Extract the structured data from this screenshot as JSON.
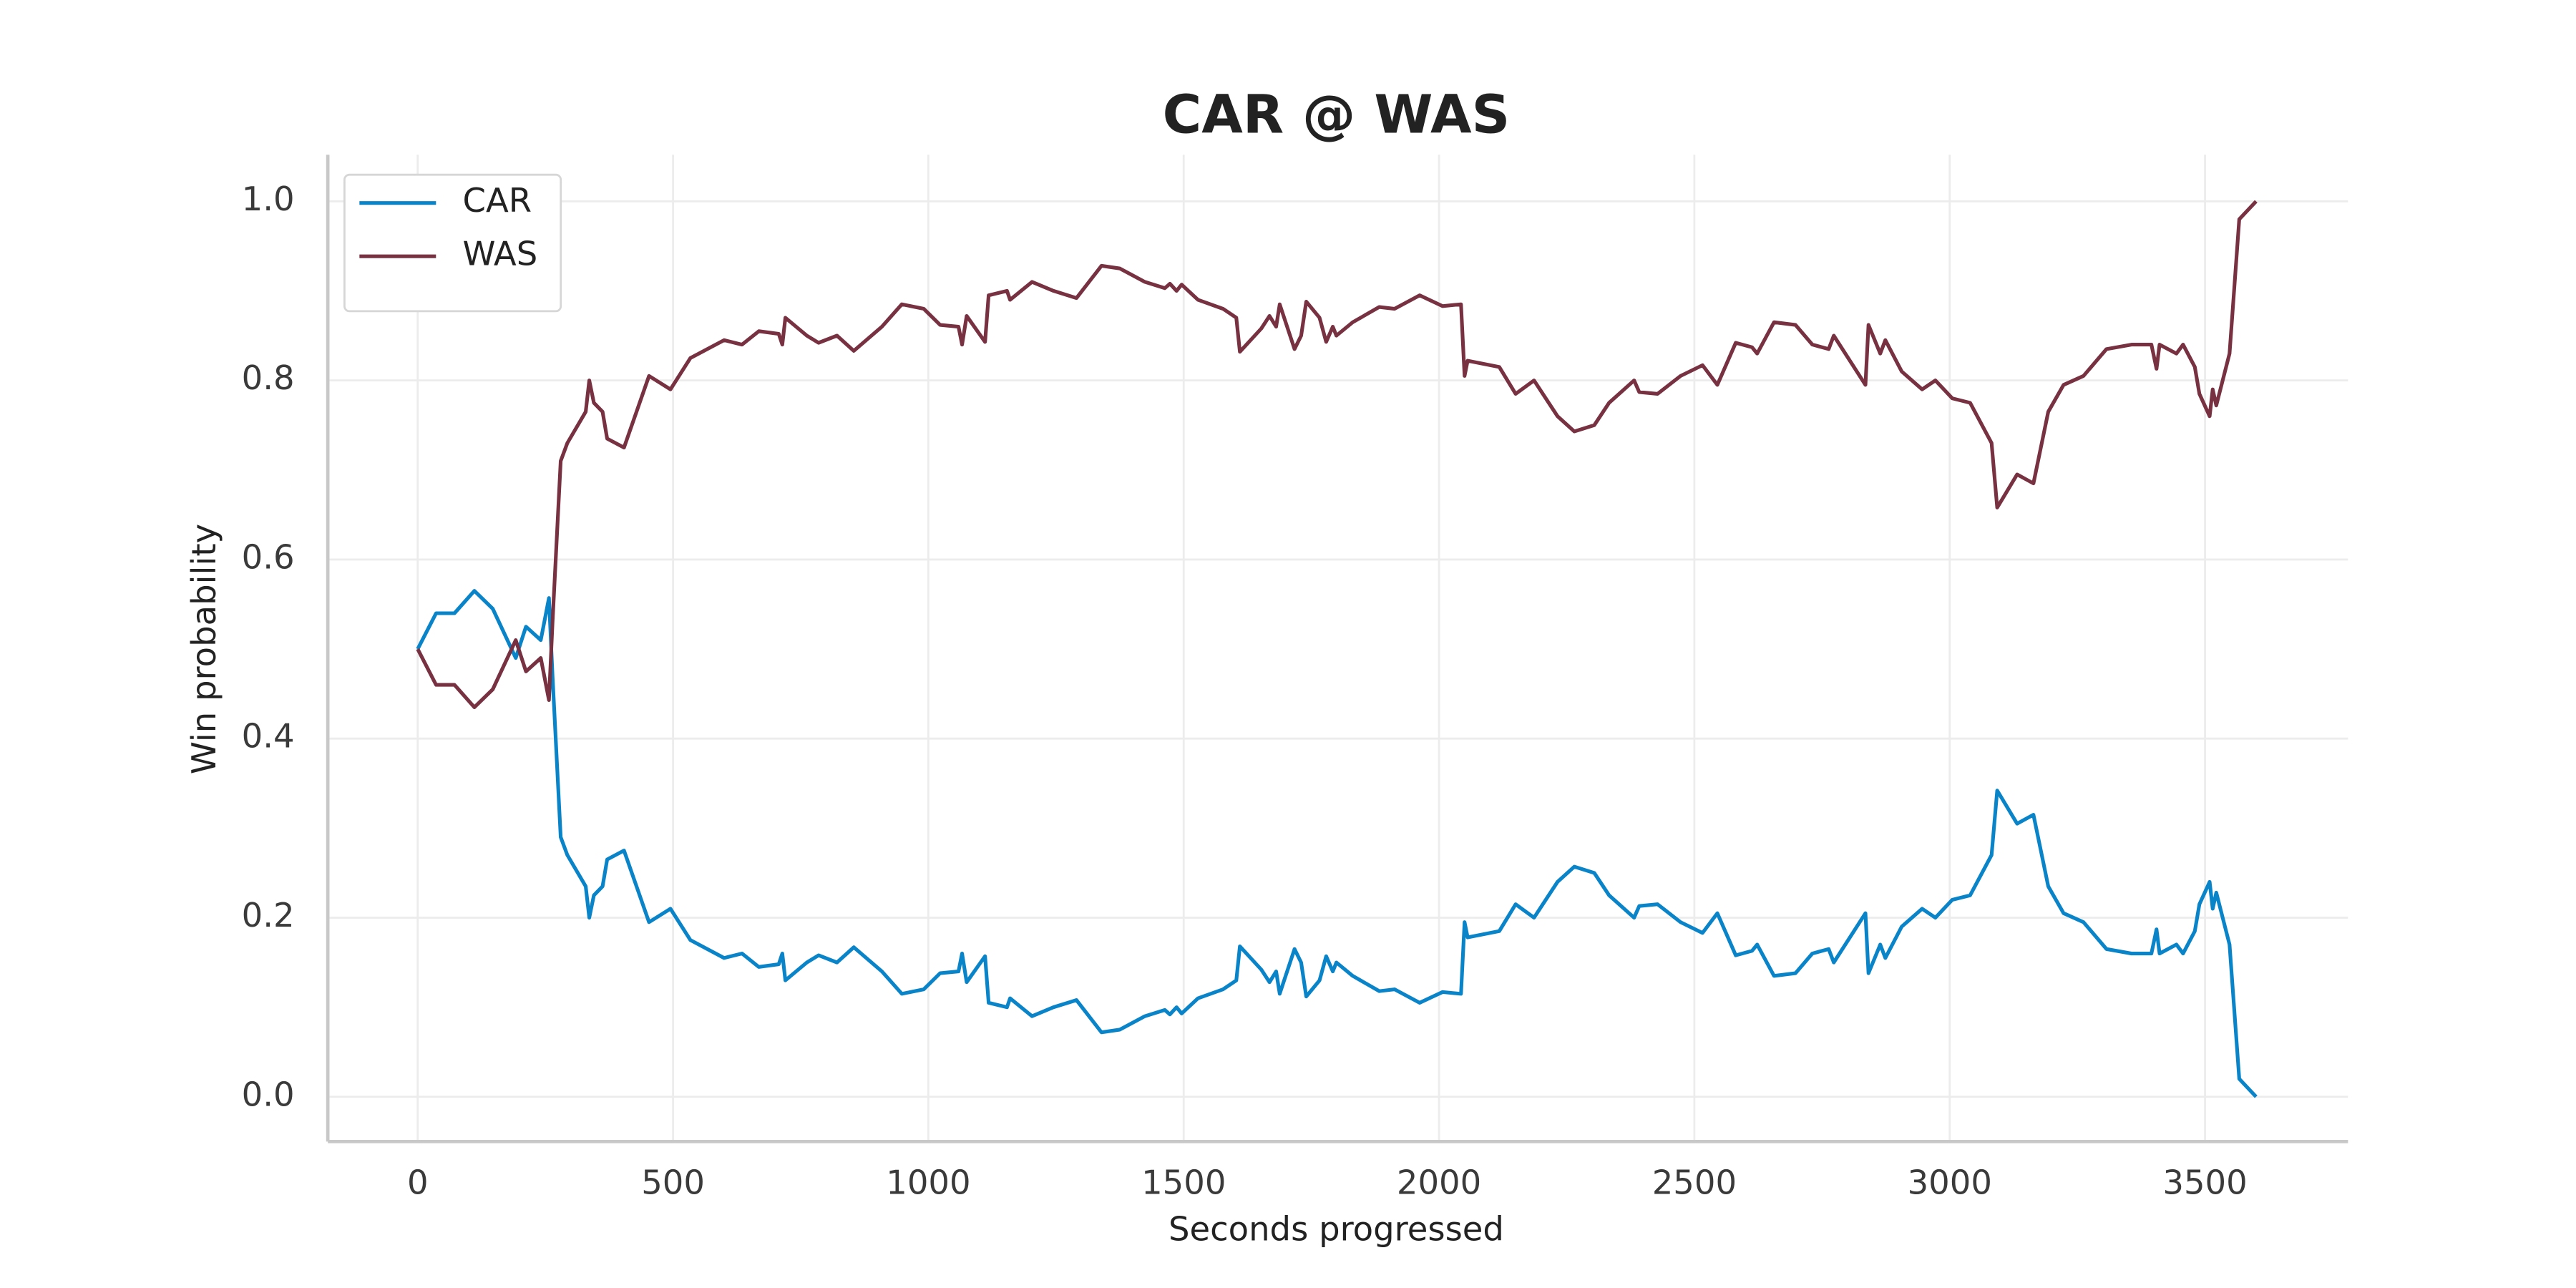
{
  "chart_data": {
    "type": "line",
    "title": "CAR @ WAS",
    "xlabel": "Seconds progressed",
    "ylabel": "Win probability",
    "x": [
      0,
      36,
      72,
      111,
      147,
      192,
      212,
      241,
      257,
      264,
      280,
      293,
      329,
      336,
      345,
      362,
      371,
      404,
      453,
      495,
      534,
      600,
      635,
      668,
      707,
      714,
      720,
      762,
      785,
      821,
      854,
      909,
      948,
      991,
      1023,
      1059,
      1066,
      1075,
      1111,
      1118,
      1154,
      1160,
      1203,
      1245,
      1290,
      1339,
      1375,
      1424,
      1463,
      1473,
      1486,
      1496,
      1528,
      1577,
      1603,
      1610,
      1652,
      1668,
      1681,
      1688,
      1717,
      1730,
      1740,
      1766,
      1779,
      1792,
      1799,
      1831,
      1883,
      1913,
      1962,
      2007,
      2043,
      2050,
      2056,
      2118,
      2150,
      2186,
      2232,
      2265,
      2304,
      2333,
      2382,
      2392,
      2428,
      2473,
      2516,
      2545,
      2581,
      2613,
      2623,
      2656,
      2698,
      2731,
      2763,
      2773,
      2835,
      2841,
      2864,
      2874,
      2906,
      2946,
      2972,
      3005,
      3040,
      3082,
      3093,
      3132,
      3164,
      3193,
      3223,
      3262,
      3307,
      3356,
      3395,
      3405,
      3411,
      3444,
      3457,
      3480,
      3489,
      3509,
      3515,
      3522,
      3548,
      3567,
      3600
    ],
    "series": [
      {
        "name": "CAR",
        "color": "#0a84c9",
        "values": [
          0.5,
          0.54,
          0.54,
          0.565,
          0.545,
          0.49,
          0.525,
          0.51,
          0.557,
          0.47,
          0.29,
          0.27,
          0.235,
          0.2,
          0.225,
          0.235,
          0.265,
          0.275,
          0.195,
          0.21,
          0.175,
          0.155,
          0.16,
          0.145,
          0.148,
          0.16,
          0.13,
          0.15,
          0.158,
          0.15,
          0.167,
          0.14,
          0.115,
          0.12,
          0.138,
          0.14,
          0.16,
          0.128,
          0.157,
          0.105,
          0.1,
          0.11,
          0.09,
          0.1,
          0.108,
          0.072,
          0.075,
          0.09,
          0.097,
          0.092,
          0.1,
          0.093,
          0.11,
          0.12,
          0.13,
          0.168,
          0.142,
          0.128,
          0.14,
          0.115,
          0.165,
          0.15,
          0.112,
          0.13,
          0.157,
          0.14,
          0.15,
          0.135,
          0.118,
          0.12,
          0.105,
          0.117,
          0.115,
          0.195,
          0.178,
          0.185,
          0.215,
          0.2,
          0.24,
          0.257,
          0.25,
          0.225,
          0.2,
          0.213,
          0.215,
          0.195,
          0.183,
          0.205,
          0.158,
          0.163,
          0.17,
          0.135,
          0.138,
          0.16,
          0.165,
          0.15,
          0.205,
          0.138,
          0.17,
          0.155,
          0.19,
          0.21,
          0.2,
          0.22,
          0.225,
          0.27,
          0.342,
          0.305,
          0.315,
          0.235,
          0.205,
          0.195,
          0.165,
          0.16,
          0.16,
          0.187,
          0.16,
          0.17,
          0.16,
          0.185,
          0.215,
          0.24,
          0.21,
          0.228,
          0.17,
          0.02,
          0.0
        ]
      },
      {
        "name": "WAS",
        "color": "#773141",
        "values": [
          0.5,
          0.46,
          0.46,
          0.435,
          0.455,
          0.51,
          0.475,
          0.49,
          0.443,
          0.53,
          0.71,
          0.73,
          0.765,
          0.8,
          0.775,
          0.765,
          0.735,
          0.725,
          0.805,
          0.79,
          0.825,
          0.845,
          0.84,
          0.855,
          0.852,
          0.84,
          0.87,
          0.85,
          0.842,
          0.85,
          0.833,
          0.86,
          0.885,
          0.88,
          0.862,
          0.86,
          0.84,
          0.872,
          0.843,
          0.895,
          0.9,
          0.89,
          0.91,
          0.9,
          0.892,
          0.928,
          0.925,
          0.91,
          0.903,
          0.908,
          0.9,
          0.907,
          0.89,
          0.88,
          0.87,
          0.832,
          0.858,
          0.872,
          0.86,
          0.885,
          0.835,
          0.85,
          0.888,
          0.87,
          0.843,
          0.86,
          0.85,
          0.865,
          0.882,
          0.88,
          0.895,
          0.883,
          0.885,
          0.805,
          0.822,
          0.815,
          0.785,
          0.8,
          0.76,
          0.743,
          0.75,
          0.775,
          0.8,
          0.787,
          0.785,
          0.805,
          0.817,
          0.795,
          0.842,
          0.837,
          0.83,
          0.865,
          0.862,
          0.84,
          0.835,
          0.85,
          0.795,
          0.862,
          0.83,
          0.845,
          0.81,
          0.79,
          0.8,
          0.78,
          0.775,
          0.73,
          0.658,
          0.695,
          0.685,
          0.765,
          0.795,
          0.805,
          0.835,
          0.84,
          0.84,
          0.813,
          0.84,
          0.83,
          0.84,
          0.815,
          0.785,
          0.76,
          0.79,
          0.772,
          0.83,
          0.98,
          1.0
        ]
      }
    ],
    "xlim": [
      -176,
      3780
    ],
    "xticks": [
      0,
      500,
      1000,
      1500,
      2000,
      2500,
      3000,
      3500
    ],
    "ylim": [
      -0.05,
      1.052
    ],
    "yticks": [
      {
        "value": 0,
        "label": "0.0"
      },
      0.2,
      0.4,
      0.6,
      0.8,
      {
        "value": 1,
        "label": "1.0"
      }
    ],
    "grid": true,
    "legend": "upper left"
  }
}
